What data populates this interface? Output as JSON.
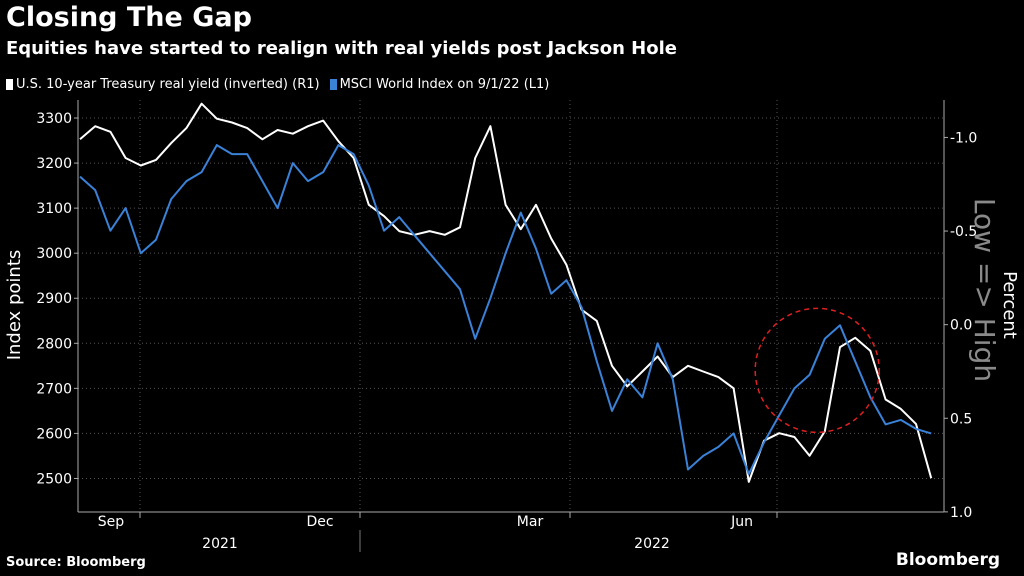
{
  "header": {
    "title": "Closing The Gap",
    "subtitle": "Equities have started to realign with real yields post Jackson Hole"
  },
  "footer": {
    "source": "Source: Bloomberg",
    "brand": "Bloomberg"
  },
  "colors": {
    "background": "#000000",
    "series_white": "#ffffff",
    "series_blue": "#3a82d8",
    "circle": "#e02020",
    "grid": "#555555"
  },
  "chart_data": {
    "type": "line",
    "title": "Closing The Gap",
    "subtitle": "Equities have started to realign with real yields post Jackson Hole",
    "ylabel_left": "Index points",
    "ylabel_right": "Percent",
    "right_axis_annotation": "Low => High",
    "left_axis": {
      "min": 2430,
      "max": 3340,
      "ticks": [
        2500,
        2600,
        2700,
        2800,
        2900,
        3000,
        3100,
        3200,
        3300
      ]
    },
    "right_axis": {
      "inverted": true,
      "min": -1.2,
      "max": 0.99,
      "ticks": [
        -1.0,
        -0.5,
        0.0,
        0.5,
        1.0
      ],
      "tick_labels": [
        "-1.0",
        "-0.5",
        "0.0",
        "0.5",
        "1.0"
      ]
    },
    "x_month_labels": [
      "Sep",
      "Dec",
      "Mar",
      "Jun"
    ],
    "x_year_labels": [
      "2021",
      "2022"
    ],
    "legend": [
      {
        "label": "U.S. 10-year Treasury real yield (inverted) (R1)",
        "color": "#ffffff"
      },
      {
        "label": "MSCI World Index  on 9/1/22 (L1)",
        "color": "#3a82d8"
      }
    ],
    "annotation": {
      "type": "dashed-circle",
      "x_week": 48.5,
      "y_value": 2740,
      "color": "#e02020"
    },
    "series": [
      {
        "name": "U.S. 10-year Treasury real yield (inverted) (R1)",
        "axis": "right",
        "color": "#ffffff",
        "x_weeks": [
          0,
          1,
          2,
          3,
          4,
          5,
          6,
          7,
          8,
          9,
          10,
          11,
          12,
          13,
          14,
          15,
          16,
          17,
          18,
          19,
          20,
          21,
          22,
          23,
          24,
          25,
          26,
          27,
          28,
          29,
          30,
          31,
          32,
          33,
          34,
          35,
          36,
          37,
          38,
          39,
          40,
          41,
          42,
          43,
          44,
          45,
          46,
          47,
          48,
          49,
          50,
          51,
          52,
          53,
          54,
          55,
          56
        ],
        "values": [
          -0.99,
          -1.06,
          -1.03,
          -0.89,
          -0.85,
          -0.88,
          -0.97,
          -1.05,
          -1.18,
          -1.1,
          -1.08,
          -1.05,
          -0.99,
          -1.04,
          -1.02,
          -1.06,
          -1.09,
          -0.98,
          -0.89,
          -0.64,
          -0.58,
          -0.5,
          -0.48,
          -0.5,
          -0.48,
          -0.52,
          -0.89,
          -1.06,
          -0.64,
          -0.51,
          -0.64,
          -0.46,
          -0.32,
          -0.08,
          -0.02,
          0.22,
          0.33,
          0.25,
          0.17,
          0.28,
          0.22,
          0.25,
          0.28,
          0.34,
          0.84,
          0.62,
          0.58,
          0.6,
          0.7,
          0.57,
          0.12,
          0.07,
          0.14,
          0.4,
          0.45,
          0.53,
          0.82
        ]
      },
      {
        "name": "MSCI World Index  on 9/1/22 (L1)",
        "axis": "left",
        "color": "#3a82d8",
        "x_weeks": [
          0,
          1,
          2,
          3,
          4,
          5,
          6,
          7,
          8,
          9,
          10,
          11,
          12,
          13,
          14,
          15,
          16,
          17,
          18,
          19,
          20,
          21,
          22,
          23,
          24,
          25,
          26,
          27,
          28,
          29,
          30,
          31,
          32,
          33,
          34,
          35,
          36,
          37,
          38,
          39,
          40,
          41,
          42,
          43,
          44,
          45,
          46,
          47,
          48,
          49,
          50,
          51,
          52,
          53,
          54,
          55,
          56
        ],
        "values": [
          3170,
          3140,
          3050,
          3100,
          3000,
          3030,
          3120,
          3160,
          3180,
          3240,
          3220,
          3220,
          3160,
          3100,
          3200,
          3160,
          3180,
          3240,
          3220,
          3150,
          3050,
          3080,
          3040,
          3000,
          2960,
          2920,
          2810,
          2900,
          3000,
          3090,
          3010,
          2910,
          2940,
          2880,
          2760,
          2650,
          2720,
          2680,
          2800,
          2720,
          2520,
          2550,
          2570,
          2600,
          2510,
          2580,
          2640,
          2700,
          2730,
          2810,
          2840,
          2760,
          2680,
          2620,
          2630,
          2610,
          2600
        ]
      }
    ]
  }
}
